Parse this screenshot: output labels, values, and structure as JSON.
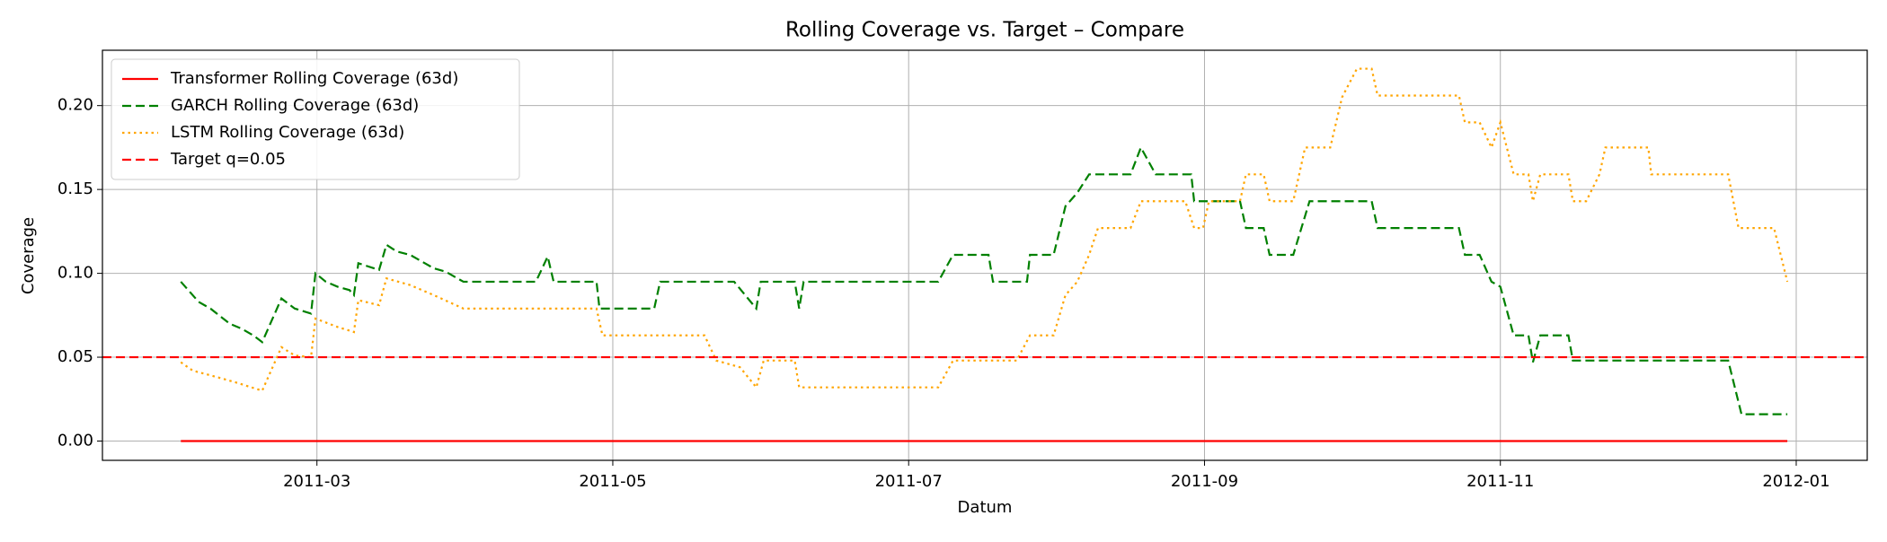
{
  "chart_data": {
    "type": "line",
    "title": "Rolling Coverage vs. Target – Compare",
    "x_label": "Datum",
    "y_label": "Coverage",
    "xlim": [
      1.55,
      13.48
    ],
    "xticks": [
      {
        "value": 3,
        "label": "2011-03"
      },
      {
        "value": 5,
        "label": "2011-05"
      },
      {
        "value": 7,
        "label": "2011-07"
      },
      {
        "value": 9,
        "label": "2011-09"
      },
      {
        "value": 11,
        "label": "2011-11"
      },
      {
        "value": 13,
        "label": "2012-01"
      }
    ],
    "ylim": [
      -0.0115,
      0.233
    ],
    "yticks": [
      {
        "value": 0,
        "label": "0.00"
      },
      {
        "value": 0.05,
        "label": "0.05"
      },
      {
        "value": 0.1,
        "label": "0.10"
      },
      {
        "value": 0.15,
        "label": "0.15"
      },
      {
        "value": 0.2,
        "label": "0.20"
      }
    ],
    "grid": true,
    "legend": "upper left",
    "series": [
      {
        "name": "Transformer Rolling Coverage (63d)",
        "color": "#ff0000",
        "linestyle": "solid",
        "x": [
          2.08,
          12.94
        ],
        "values": [
          0,
          0
        ]
      },
      {
        "name": "GARCH Rolling Coverage (63d)",
        "color": "#008000",
        "linestyle": "dashed",
        "x": [
          2.08,
          2.2,
          2.28,
          2.41,
          2.49,
          2.57,
          2.63,
          2.76,
          2.85,
          2.96,
          2.99,
          3.06,
          3.14,
          3.22,
          3.25,
          3.28,
          3.42,
          3.47,
          3.54,
          3.63,
          3.79,
          3.87,
          3.99,
          4.48,
          4.56,
          4.6,
          4.89,
          4.91,
          5.28,
          5.32,
          5.82,
          5.97,
          6.0,
          6.23,
          6.26,
          6.29,
          7.2,
          7.3,
          7.54,
          7.57,
          7.8,
          7.82,
          7.98,
          8.06,
          8.14,
          8.22,
          8.5,
          8.57,
          8.67,
          8.91,
          8.93,
          9.24,
          9.28,
          9.4,
          9.44,
          9.6,
          9.71,
          10.13,
          10.17,
          10.72,
          10.76,
          10.86,
          10.94,
          11.0,
          11.09,
          11.19,
          11.22,
          11.27,
          11.46,
          11.49,
          12.54,
          12.63,
          12.94
        ],
        "values": [
          0.095,
          0.083,
          0.079,
          0.07,
          0.067,
          0.063,
          0.059,
          0.085,
          0.079,
          0.076,
          0.1,
          0.095,
          0.092,
          0.09,
          0.087,
          0.106,
          0.102,
          0.117,
          0.113,
          0.111,
          0.103,
          0.101,
          0.095,
          0.095,
          0.11,
          0.095,
          0.095,
          0.079,
          0.079,
          0.095,
          0.095,
          0.079,
          0.095,
          0.095,
          0.079,
          0.095,
          0.095,
          0.111,
          0.111,
          0.095,
          0.095,
          0.111,
          0.111,
          0.14,
          0.148,
          0.159,
          0.159,
          0.175,
          0.159,
          0.159,
          0.143,
          0.143,
          0.127,
          0.127,
          0.111,
          0.111,
          0.143,
          0.143,
          0.127,
          0.127,
          0.111,
          0.111,
          0.095,
          0.092,
          0.063,
          0.063,
          0.047,
          0.063,
          0.063,
          0.048,
          0.048,
          0.016,
          0.016
        ]
      },
      {
        "name": "LSTM Rolling Coverage (63d)",
        "color": "#ffa500",
        "linestyle": "dotted",
        "x": [
          2.08,
          2.16,
          2.33,
          2.45,
          2.63,
          2.76,
          2.85,
          2.96,
          2.99,
          3.14,
          3.25,
          3.28,
          3.42,
          3.47,
          3.63,
          3.79,
          3.99,
          4.89,
          4.93,
          5.62,
          5.7,
          5.86,
          5.97,
          6.02,
          6.23,
          6.26,
          7.2,
          7.3,
          7.73,
          7.82,
          7.98,
          8.06,
          8.14,
          8.22,
          8.28,
          8.5,
          8.57,
          8.87,
          8.93,
          8.99,
          9.03,
          9.24,
          9.28,
          9.4,
          9.44,
          9.6,
          9.68,
          9.85,
          9.93,
          10.03,
          10.13,
          10.17,
          10.72,
          10.76,
          10.86,
          10.94,
          11.0,
          11.09,
          11.19,
          11.22,
          11.27,
          11.46,
          11.49,
          11.58,
          11.67,
          11.71,
          12.0,
          12.02,
          12.54,
          12.61,
          12.85,
          12.94
        ],
        "values": [
          0.047,
          0.042,
          0.038,
          0.035,
          0.03,
          0.056,
          0.051,
          0.05,
          0.073,
          0.068,
          0.065,
          0.084,
          0.081,
          0.097,
          0.093,
          0.087,
          0.079,
          0.079,
          0.063,
          0.063,
          0.048,
          0.044,
          0.032,
          0.048,
          0.048,
          0.032,
          0.032,
          0.048,
          0.048,
          0.063,
          0.063,
          0.087,
          0.095,
          0.111,
          0.127,
          0.127,
          0.143,
          0.143,
          0.127,
          0.127,
          0.143,
          0.143,
          0.159,
          0.159,
          0.143,
          0.143,
          0.175,
          0.175,
          0.205,
          0.222,
          0.222,
          0.206,
          0.206,
          0.19,
          0.19,
          0.175,
          0.19,
          0.159,
          0.159,
          0.143,
          0.159,
          0.159,
          0.143,
          0.143,
          0.159,
          0.175,
          0.175,
          0.159,
          0.159,
          0.127,
          0.127,
          0.095
        ]
      }
    ],
    "reference_lines": [
      {
        "name": "Target q=0.05",
        "color": "#ff0000",
        "linestyle": "dashed",
        "value": 0.05
      }
    ]
  }
}
